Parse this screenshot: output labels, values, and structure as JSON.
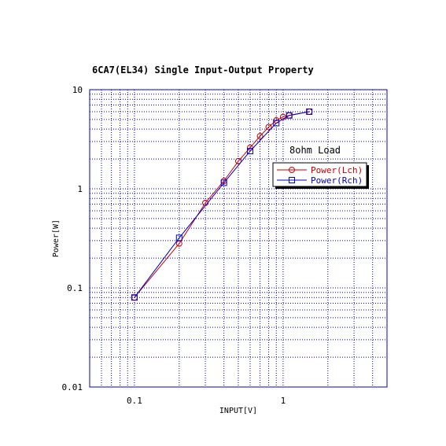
{
  "chart_data": {
    "type": "line",
    "title": "6CA7(EL34) Single Input-Output Property",
    "xlabel": "INPUT[V]",
    "ylabel": "Power[W]",
    "x_scale": "log",
    "y_scale": "log",
    "xlim": [
      0.05,
      5
    ],
    "ylim": [
      0.01,
      10
    ],
    "x_ticks": [
      {
        "value": 0.1,
        "label": "0.1"
      },
      {
        "value": 1,
        "label": "1"
      }
    ],
    "y_ticks": [
      {
        "value": 0.01,
        "label": "0.01"
      },
      {
        "value": 0.1,
        "label": "0.1"
      },
      {
        "value": 1,
        "label": "1"
      },
      {
        "value": 10,
        "label": "10"
      }
    ],
    "grid": true,
    "annotation": "8ohm Load",
    "legend_position": "center-right",
    "series": [
      {
        "name": "Power(Lch)",
        "color": "#cc0000",
        "marker": "circle",
        "x": [
          0.1,
          0.2,
          0.3,
          0.4,
          0.5,
          0.6,
          0.7,
          0.8,
          0.9,
          1.0,
          1.1,
          1.5
        ],
        "y": [
          0.08,
          0.28,
          0.72,
          1.2,
          1.9,
          2.6,
          3.4,
          4.2,
          4.9,
          5.3,
          5.5,
          6.0
        ]
      },
      {
        "name": "Power(Rch)",
        "color": "#0000cc",
        "marker": "square",
        "x": [
          0.1,
          0.2,
          0.4,
          0.6,
          0.9,
          1.1,
          1.5
        ],
        "y": [
          0.08,
          0.32,
          1.15,
          2.4,
          4.6,
          5.5,
          6.0
        ]
      }
    ]
  }
}
